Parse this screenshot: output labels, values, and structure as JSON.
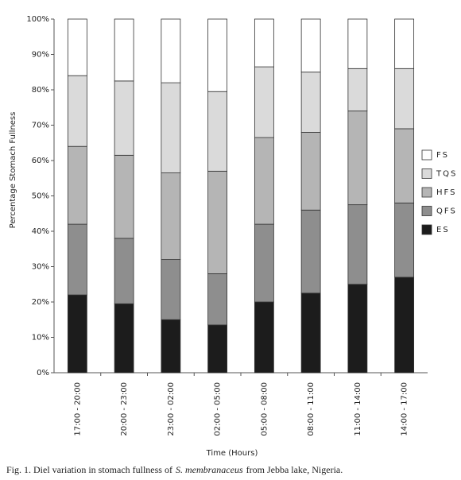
{
  "chart_data": {
    "type": "stacked_bar",
    "categories": [
      "17:00 - 20:00",
      "20:00 - 23:00",
      "23:00 - 02:00",
      "02:00 - 05:00",
      "05:00 - 08:00",
      "08:00 - 11:00",
      "11:00 - 14:00",
      "14:00 - 17:00"
    ],
    "series": [
      {
        "name": "ES",
        "color": "#1c1c1c",
        "values": [
          22,
          19.5,
          15,
          13.5,
          20,
          22.5,
          25,
          27
        ]
      },
      {
        "name": "QFS",
        "color": "#8e8e8e",
        "values": [
          20,
          18.5,
          17,
          14.5,
          22,
          23.5,
          22.5,
          21
        ]
      },
      {
        "name": "HFS",
        "color": "#b5b5b5",
        "values": [
          22,
          23.5,
          24.5,
          29,
          24.5,
          22,
          26.5,
          21
        ]
      },
      {
        "name": "TQS",
        "color": "#dadada",
        "values": [
          20,
          21,
          25.5,
          22.5,
          20,
          17,
          12,
          17
        ]
      },
      {
        "name": "FS",
        "color": "#ffffff",
        "values": [
          16,
          17.5,
          18,
          20.5,
          13.5,
          15,
          14,
          14
        ]
      }
    ],
    "ylim": [
      0,
      100
    ],
    "yticks": [
      {
        "value": 0,
        "label": "0%"
      },
      {
        "value": 10,
        "label": "10%"
      },
      {
        "value": 20,
        "label": "20%"
      },
      {
        "value": 30,
        "label": "30%"
      },
      {
        "value": 40,
        "label": "40%"
      },
      {
        "value": 50,
        "label": "50%"
      },
      {
        "value": 60,
        "label": "60%"
      },
      {
        "value": 70,
        "label": "70%"
      },
      {
        "value": 80,
        "label": "80%"
      },
      {
        "value": 90,
        "label": "90%"
      },
      {
        "value": 100,
        "label": "100%"
      }
    ],
    "ylabel": "Percentage Stomach Fullness",
    "xlabel": "Time (Hours)",
    "caption": [
      "Fig. 1. Diel variation in stomach fullness of",
      "S. membranaceus",
      "from Jebba lake, Nigeria."
    ],
    "legend": "right"
  }
}
